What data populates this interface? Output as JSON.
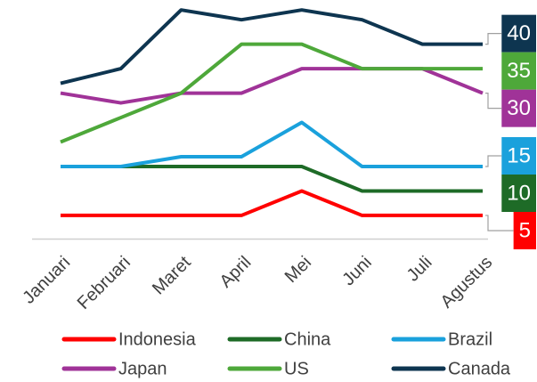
{
  "chart_data": {
    "type": "line",
    "categories": [
      "Januari",
      "Februari",
      "Maret",
      "April",
      "Mei",
      "Juni",
      "Juli",
      "Agustus"
    ],
    "series": [
      {
        "name": "Indonesia",
        "color": "#ff0000",
        "values": [
          5,
          5,
          5,
          5,
          10,
          5,
          5,
          5
        ]
      },
      {
        "name": "China",
        "color": "#1e6b27",
        "values": [
          15,
          15,
          15,
          15,
          15,
          10,
          10,
          10
        ]
      },
      {
        "name": "Brazil",
        "color": "#1aa1dc",
        "values": [
          15,
          15,
          17,
          17,
          24,
          15,
          15,
          15
        ]
      },
      {
        "name": "Japan",
        "color": "#a03398",
        "values": [
          30,
          28,
          30,
          30,
          35,
          35,
          35,
          30
        ]
      },
      {
        "name": "US",
        "color": "#4ea83a",
        "values": [
          20,
          25,
          30,
          40,
          40,
          35,
          35,
          35
        ]
      },
      {
        "name": "Canada",
        "color": "#0e3550",
        "values": [
          32,
          35,
          47,
          45,
          47,
          45,
          40,
          40
        ]
      }
    ],
    "ylim": [
      0,
      48
    ]
  }
}
